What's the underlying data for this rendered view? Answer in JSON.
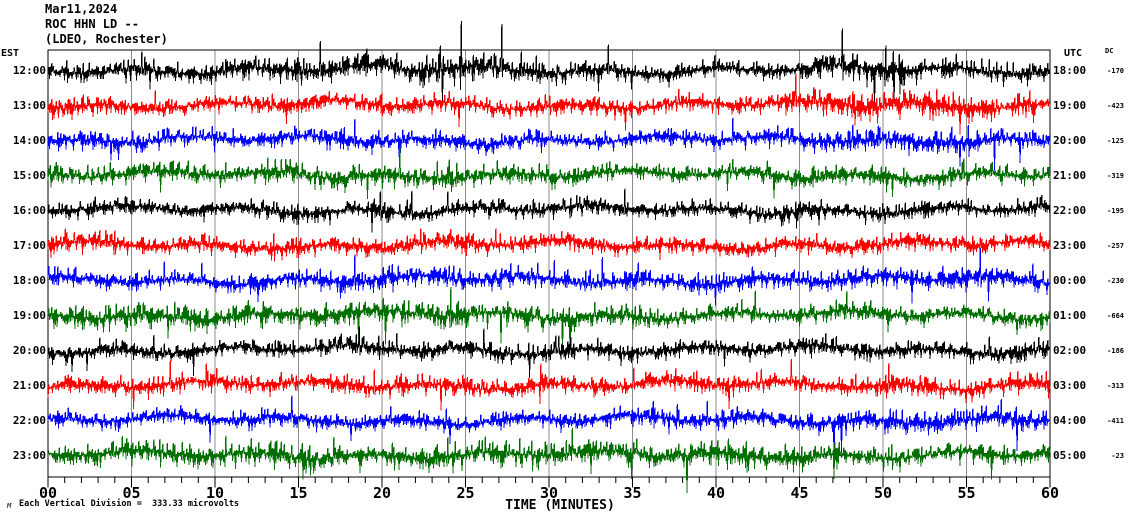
{
  "title": {
    "date": "Mar11,2024",
    "station": "ROC HHN LD --",
    "network": "(LDEO, Rochester)"
  },
  "left_axis": {
    "header": "EST"
  },
  "right_axis": {
    "header": "UTC"
  },
  "dc_column": {
    "header": "DC"
  },
  "x_axis": {
    "labels": [
      "00",
      "05",
      "10",
      "15",
      "20",
      "25",
      "30",
      "35",
      "40",
      "45",
      "50",
      "55",
      "60"
    ],
    "title": "TIME (MINUTES)",
    "major_step_minutes": 5,
    "minor_step_minutes": 1
  },
  "footer": {
    "glyph": "M",
    "scale_note": "Each Vertical Division =  333.33 microvolts"
  },
  "colors": {
    "black_trace": "#000000",
    "red_trace": "#ff0000",
    "blue_trace": "#0000ff",
    "green_trace": "#006f00",
    "grid": "#8c8c8c",
    "frame": "#000000",
    "text": "#000000",
    "background": "#ffffff"
  },
  "chart_data": {
    "type": "line",
    "kind": "helicorder-seismogram",
    "xlabel": "TIME (MINUTES)",
    "x_range_minutes": [
      0,
      60
    ],
    "x_ticks": [
      0,
      5,
      10,
      15,
      20,
      25,
      30,
      35,
      40,
      45,
      50,
      55,
      60
    ],
    "grid": "vertical-gray-lines-every-5-min",
    "vertical_division_microvolts": 333.33,
    "rows": [
      {
        "est": "12:00",
        "utc": "18:00",
        "dc": -170,
        "color": "#000000",
        "envelope": [
          0.5,
          0.55,
          0.65,
          0.7,
          0.9,
          1.0,
          0.6,
          0.5,
          0.45,
          0.55,
          0.9,
          0.65,
          0.55
        ]
      },
      {
        "est": "13:00",
        "utc": "19:00",
        "dc": -423,
        "color": "#ff0000",
        "envelope": [
          0.75,
          0.5,
          0.45,
          0.5,
          0.55,
          0.6,
          0.5,
          0.45,
          0.45,
          0.8,
          1.0,
          0.8,
          0.6
        ]
      },
      {
        "est": "14:00",
        "utc": "20:00",
        "dc": -125,
        "color": "#0000ff",
        "envelope": [
          0.55,
          0.5,
          0.45,
          0.5,
          0.6,
          0.5,
          0.5,
          0.45,
          0.5,
          0.6,
          0.75,
          0.65,
          0.55
        ]
      },
      {
        "est": "15:00",
        "utc": "21:00",
        "dc": -319,
        "color": "#006f00",
        "envelope": [
          0.5,
          0.5,
          0.55,
          0.7,
          0.65,
          0.55,
          0.6,
          0.5,
          0.45,
          0.5,
          0.6,
          0.55,
          0.5
        ]
      },
      {
        "est": "16:00",
        "utc": "22:00",
        "dc": -195,
        "color": "#000000",
        "envelope": [
          0.5,
          0.48,
          0.5,
          0.52,
          0.55,
          0.5,
          0.52,
          0.48,
          0.5,
          0.55,
          0.52,
          0.5,
          0.5
        ]
      },
      {
        "est": "17:00",
        "utc": "23:00",
        "dc": -257,
        "color": "#ff0000",
        "envelope": [
          0.85,
          0.55,
          0.5,
          0.5,
          0.6,
          0.55,
          0.5,
          0.5,
          0.45,
          0.5,
          0.55,
          0.5,
          0.45
        ]
      },
      {
        "est": "18:00",
        "utc": "00:00",
        "dc": -230,
        "color": "#0000ff",
        "envelope": [
          0.5,
          0.5,
          0.45,
          0.55,
          0.75,
          0.65,
          0.6,
          0.5,
          0.65,
          0.5,
          0.55,
          0.75,
          0.55
        ]
      },
      {
        "est": "19:00",
        "utc": "01:00",
        "dc": -664,
        "color": "#006f00",
        "envelope": [
          0.65,
          0.75,
          0.85,
          0.75,
          0.65,
          0.8,
          0.75,
          0.6,
          0.5,
          0.55,
          0.5,
          0.5,
          0.5
        ]
      },
      {
        "est": "20:00",
        "utc": "02:00",
        "dc": -186,
        "color": "#000000",
        "envelope": [
          0.5,
          0.5,
          0.45,
          0.5,
          0.52,
          0.55,
          0.58,
          0.5,
          0.45,
          0.5,
          0.5,
          0.45,
          0.5
        ]
      },
      {
        "est": "21:00",
        "utc": "03:00",
        "dc": -313,
        "color": "#ff0000",
        "envelope": [
          0.5,
          0.6,
          0.55,
          0.5,
          0.62,
          0.55,
          0.5,
          0.55,
          0.6,
          0.5,
          0.58,
          0.6,
          0.65
        ]
      },
      {
        "est": "22:00",
        "utc": "04:00",
        "dc": -411,
        "color": "#0000ff",
        "envelope": [
          0.5,
          0.45,
          0.5,
          0.55,
          0.5,
          0.48,
          0.5,
          0.55,
          0.5,
          0.52,
          0.78,
          0.7,
          0.6
        ]
      },
      {
        "est": "23:00",
        "utc": "05:00",
        "dc": -23,
        "color": "#006f00",
        "envelope": [
          0.65,
          0.7,
          0.75,
          0.85,
          0.7,
          0.8,
          0.85,
          0.7,
          0.75,
          0.7,
          0.65,
          0.6,
          0.55
        ]
      }
    ]
  }
}
